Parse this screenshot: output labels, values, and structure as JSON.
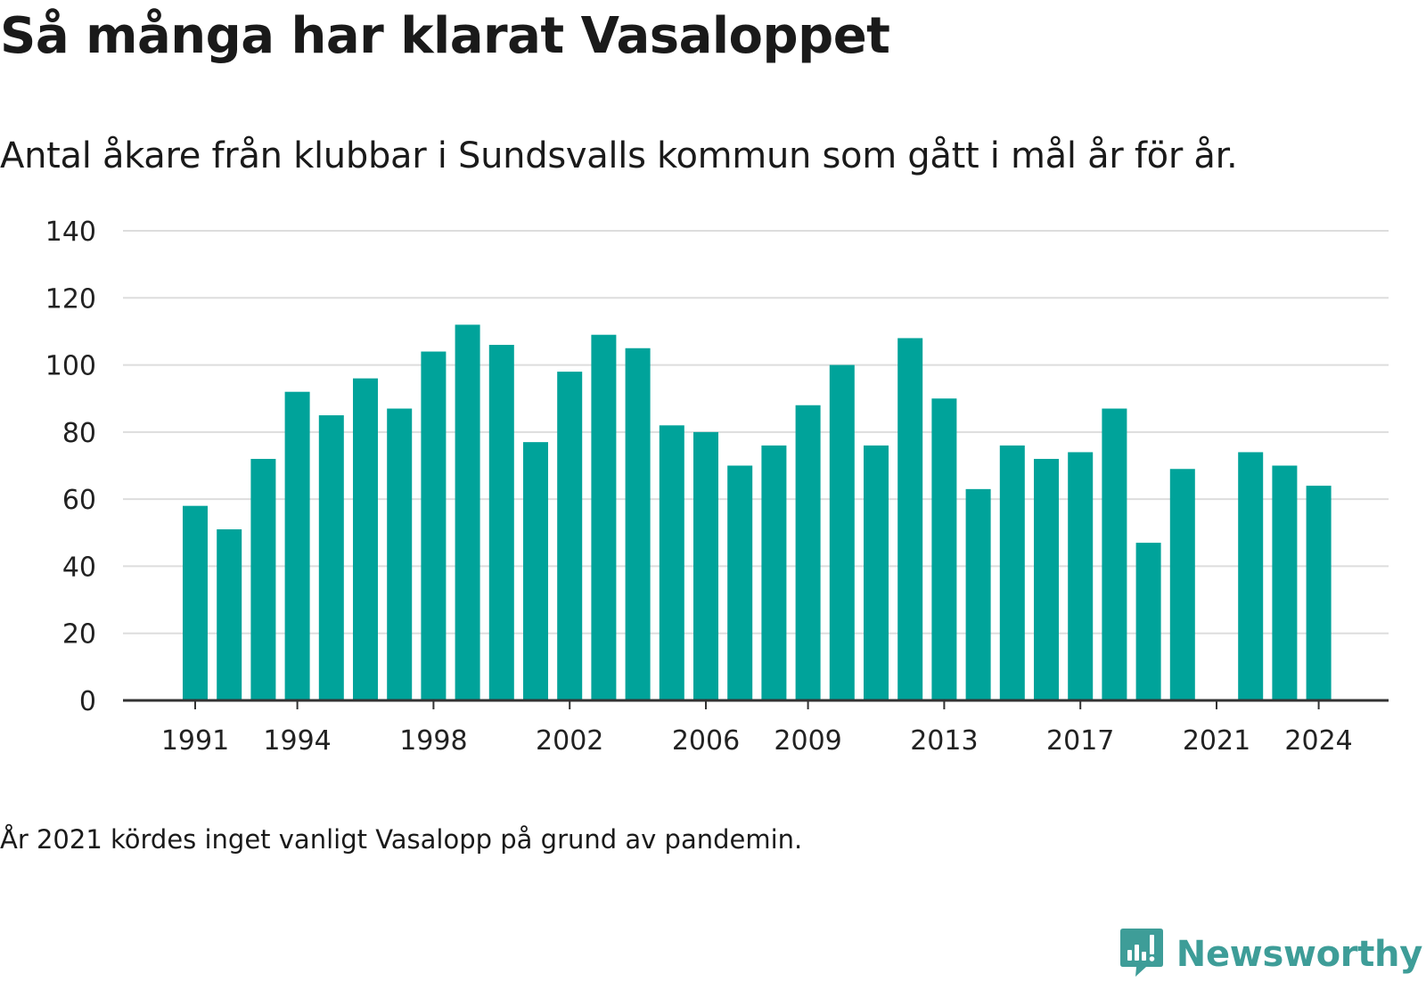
{
  "chart_data": {
    "type": "bar",
    "title": "Så många har klarat Vasaloppet",
    "subtitle": "Antal åkare från klubbar i Sundsvalls kommun som gått i mål år för år.",
    "footnote": "År 2021 kördes inget vanligt Vasalopp på grund av pandemin.",
    "x": [
      1991,
      1992,
      1993,
      1994,
      1995,
      1996,
      1997,
      1998,
      1999,
      2000,
      2001,
      2002,
      2003,
      2004,
      2005,
      2006,
      2007,
      2008,
      2009,
      2010,
      2011,
      2012,
      2013,
      2014,
      2015,
      2016,
      2017,
      2018,
      2019,
      2020,
      2021,
      2022,
      2023,
      2024
    ],
    "values": [
      58,
      51,
      72,
      92,
      85,
      96,
      87,
      104,
      112,
      106,
      77,
      98,
      109,
      105,
      82,
      80,
      70,
      76,
      88,
      100,
      76,
      108,
      90,
      63,
      76,
      72,
      74,
      87,
      47,
      69,
      null,
      74,
      70,
      64
    ],
    "xticks": [
      "1991",
      "1994",
      "1998",
      "2002",
      "2006",
      "2009",
      "2013",
      "2017",
      "2021",
      "2024"
    ],
    "yticks": [
      "0",
      "20",
      "40",
      "60",
      "80",
      "100",
      "120",
      "140"
    ],
    "ylim": [
      0,
      140
    ],
    "xlabel": "",
    "ylabel": "",
    "grid": true,
    "bar_color": "#00a39a",
    "grid_color": "#dddddd",
    "axis_color": "#333333"
  },
  "brand": {
    "name": "Newsworthy",
    "color": "#3e9d98",
    "icon": "bar-chart-speech-bubble-icon"
  }
}
